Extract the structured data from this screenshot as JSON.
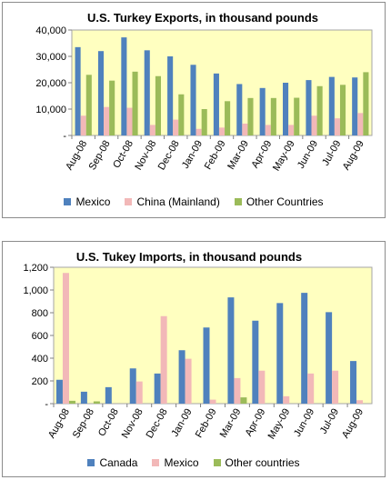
{
  "chart_data": [
    {
      "type": "bar",
      "title": "U.S. Turkey Exports, in thousand pounds",
      "xlabel": "",
      "ylabel": "",
      "ylim": [
        0,
        40000
      ],
      "yticks": [
        "-",
        "10,000",
        "20,000",
        "30,000",
        "40,000"
      ],
      "grid": false,
      "legend_position": "bottom",
      "categories": [
        "Aug-08",
        "Sep-08",
        "Oct-08",
        "Nov-08",
        "Dec-08",
        "Jan-09",
        "Feb-09",
        "Mar-09",
        "Apr-09",
        "May-09",
        "Jun-09",
        "Jul-09",
        "Aug-09"
      ],
      "series": [
        {
          "name": "Mexico",
          "color": "#4f81bd",
          "values": [
            33500,
            32000,
            37200,
            32300,
            30000,
            26800,
            23500,
            19500,
            18000,
            20000,
            21000,
            22200,
            22000
          ]
        },
        {
          "name": "China (Mainland)",
          "color": "#f2b8b8",
          "values": [
            7500,
            10800,
            10500,
            4000,
            6000,
            2500,
            3000,
            4500,
            4000,
            4000,
            7500,
            6500,
            8500
          ]
        },
        {
          "name": "Other Countries",
          "color": "#9bbb59",
          "values": [
            23000,
            20800,
            24200,
            22500,
            15600,
            10000,
            13000,
            14200,
            14200,
            14300,
            18700,
            19200,
            24000
          ]
        }
      ]
    },
    {
      "type": "bar",
      "title": "U.S. Tukey Imports, in thousand pounds",
      "xlabel": "",
      "ylabel": "",
      "ylim": [
        0,
        1200
      ],
      "yticks": [
        "-",
        "200",
        "400",
        "600",
        "800",
        "1,000",
        "1,200"
      ],
      "grid": false,
      "legend_position": "bottom",
      "categories": [
        "Aug-08",
        "Sep-08",
        "Oct-08",
        "Nov-08",
        "Dec-08",
        "Jan-09",
        "Feb-09",
        "Mar-09",
        "Apr-09",
        "May-09",
        "Jun-09",
        "Jul-09",
        "Aug-09"
      ],
      "series": [
        {
          "name": "Canada",
          "color": "#4f81bd",
          "values": [
            210,
            105,
            145,
            310,
            265,
            470,
            670,
            935,
            730,
            885,
            975,
            805,
            375
          ]
        },
        {
          "name": "Mexico",
          "color": "#f2b8b8",
          "values": [
            1150,
            0,
            0,
            195,
            770,
            395,
            35,
            225,
            290,
            65,
            265,
            290,
            30
          ]
        },
        {
          "name": "Other countries",
          "color": "#9bbb59",
          "values": [
            25,
            20,
            0,
            0,
            0,
            0,
            0,
            55,
            0,
            0,
            0,
            0,
            0
          ]
        }
      ]
    }
  ]
}
